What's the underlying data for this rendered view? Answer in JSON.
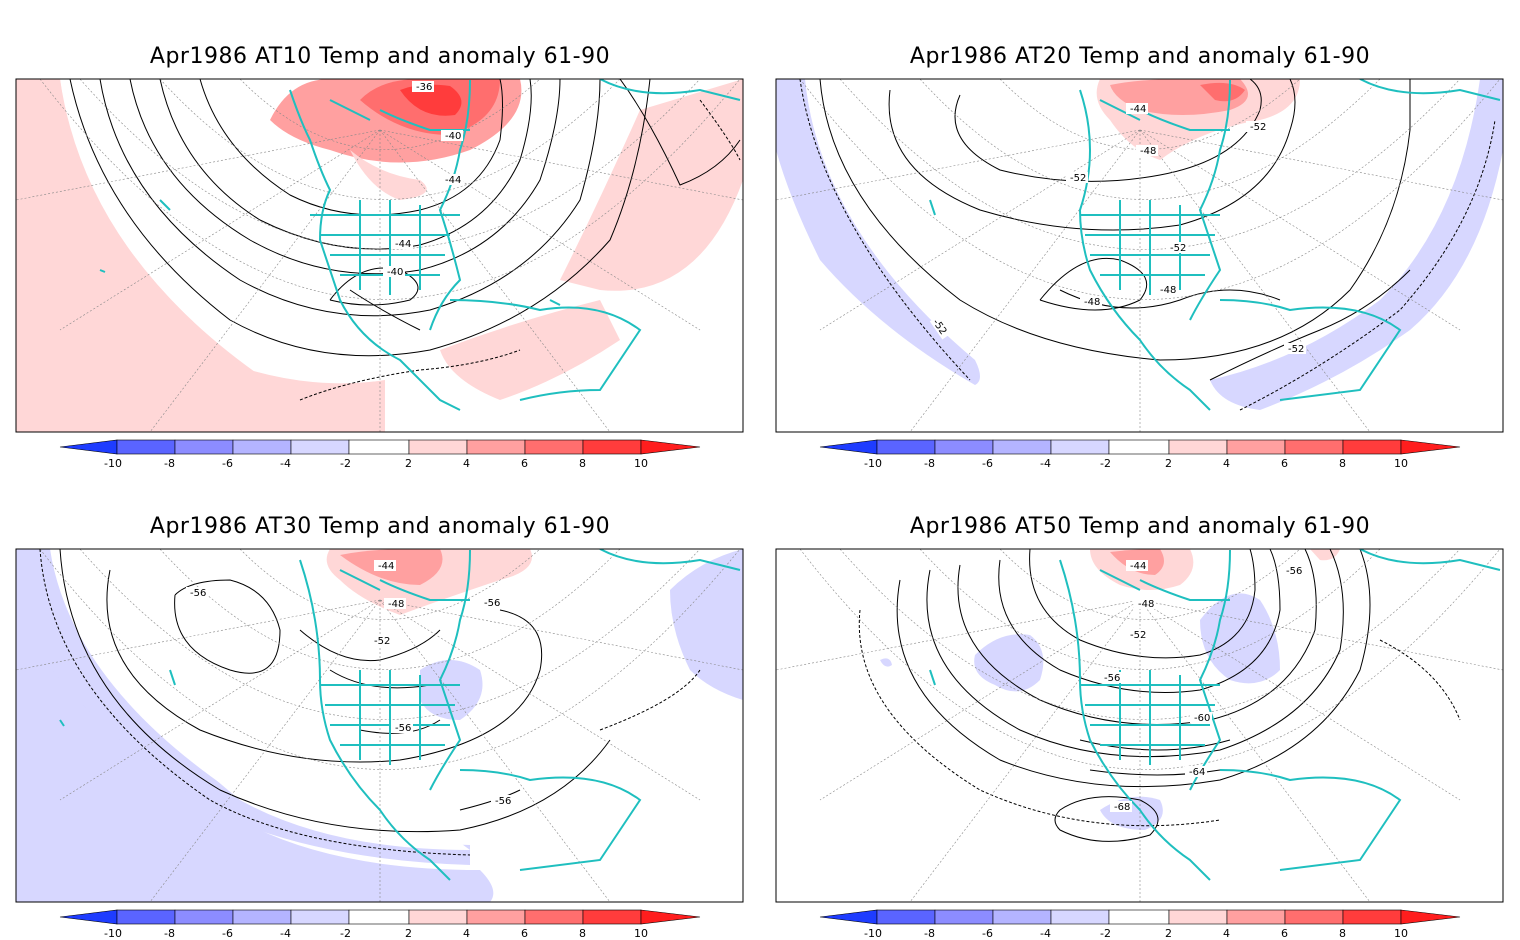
{
  "panels": [
    {
      "title": "Apr1986 AT10 Temp and anomaly 61-90",
      "contour_labels": [
        "-36",
        "-40",
        "-44",
        "-44",
        "-40"
      ]
    },
    {
      "title": "Apr1986 AT20 Temp and anomaly 61-90",
      "contour_labels": [
        "-44",
        "-48",
        "-52",
        "-52",
        "-52",
        "-48",
        "-48",
        "-52",
        "-52"
      ]
    },
    {
      "title": "Apr1986 AT30 Temp and anomaly 61-90",
      "contour_labels": [
        "-44",
        "-48",
        "-52",
        "-56",
        "-56",
        "-56",
        "-56"
      ]
    },
    {
      "title": "Apr1986 AT50 Temp and anomaly 61-90",
      "contour_labels": [
        "-44",
        "-48",
        "-52",
        "-56",
        "-56",
        "-60",
        "-64",
        "-68"
      ]
    }
  ],
  "colorbar": {
    "ticks": [
      "-10",
      "-8",
      "-6",
      "-4",
      "-2",
      "2",
      "4",
      "6",
      "8",
      "10"
    ],
    "colors": [
      "#1e3cff",
      "#5a64ff",
      "#8c8cff",
      "#b4b4ff",
      "#d7d7ff",
      "#ffffff",
      "#ffd7d7",
      "#ffa0a0",
      "#ff6e6e",
      "#ff3c3c",
      "#ff1e1e"
    ]
  },
  "map_colors": {
    "coast": "#1fbfbf",
    "frame": "#000000"
  }
}
